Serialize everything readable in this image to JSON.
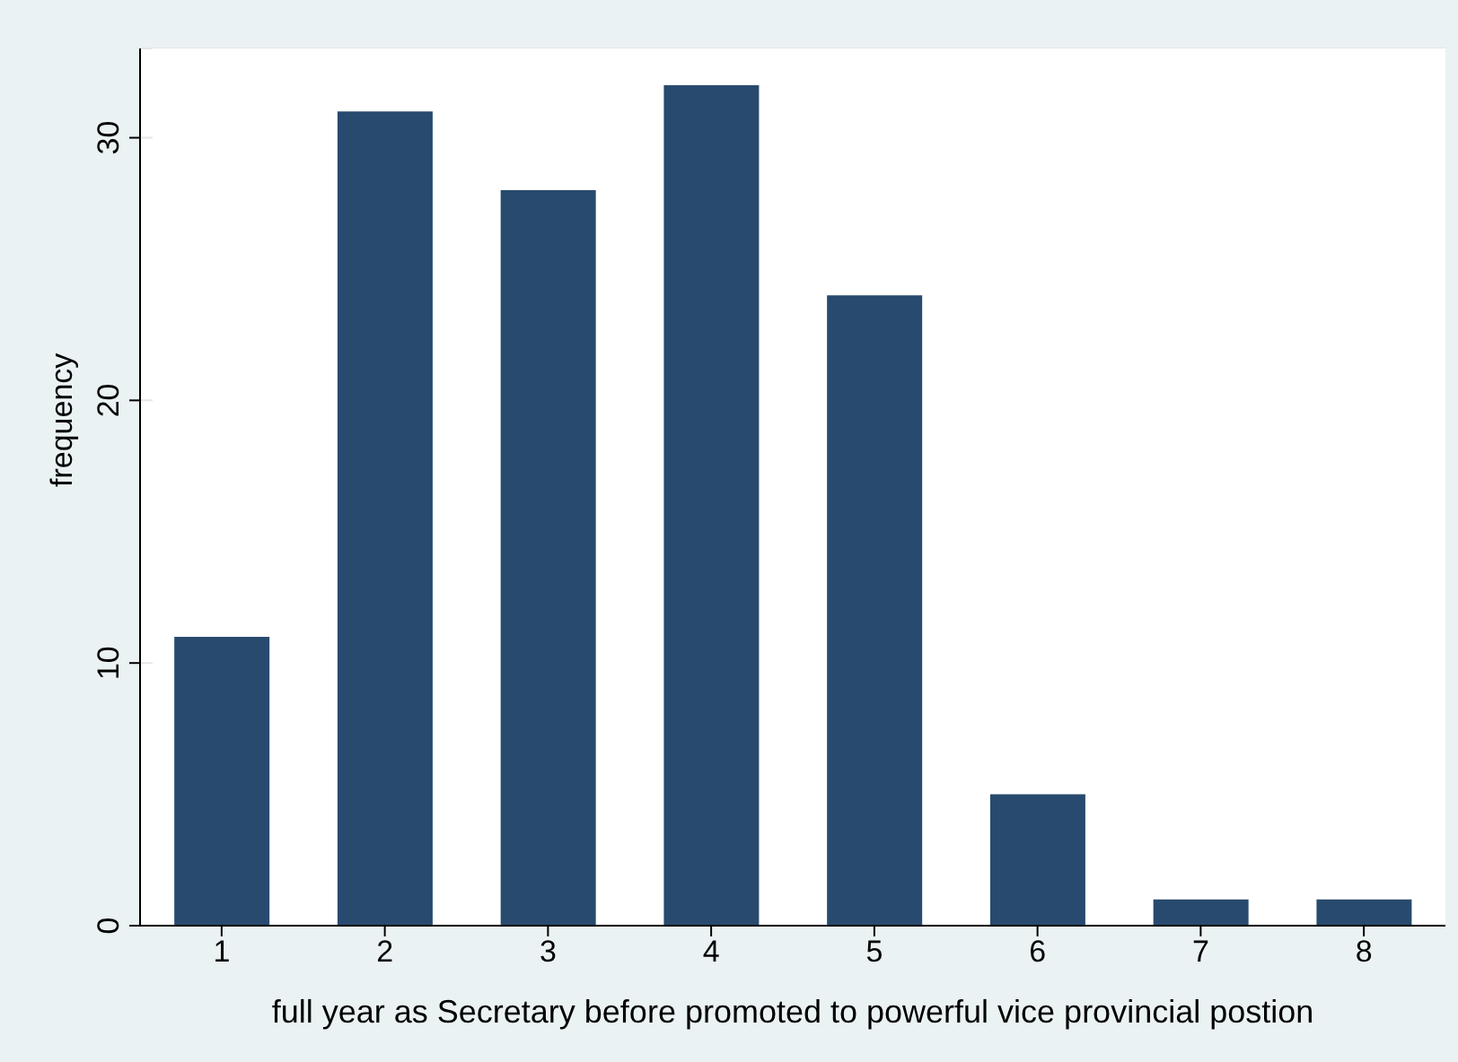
{
  "chart_data": {
    "type": "bar",
    "xlabel": "full year as Secretary before promoted to powerful vice provincial postion",
    "ylabel": "frequency",
    "categories": [
      "1",
      "2",
      "3",
      "4",
      "5",
      "6",
      "7",
      "8"
    ],
    "values": [
      11,
      31,
      28,
      32,
      24,
      5,
      1,
      1
    ],
    "color": "#284a6e",
    "ylim": [
      0,
      33.4
    ],
    "yticks": [
      0,
      10,
      20,
      30
    ],
    "grid": "y",
    "legend": false
  }
}
